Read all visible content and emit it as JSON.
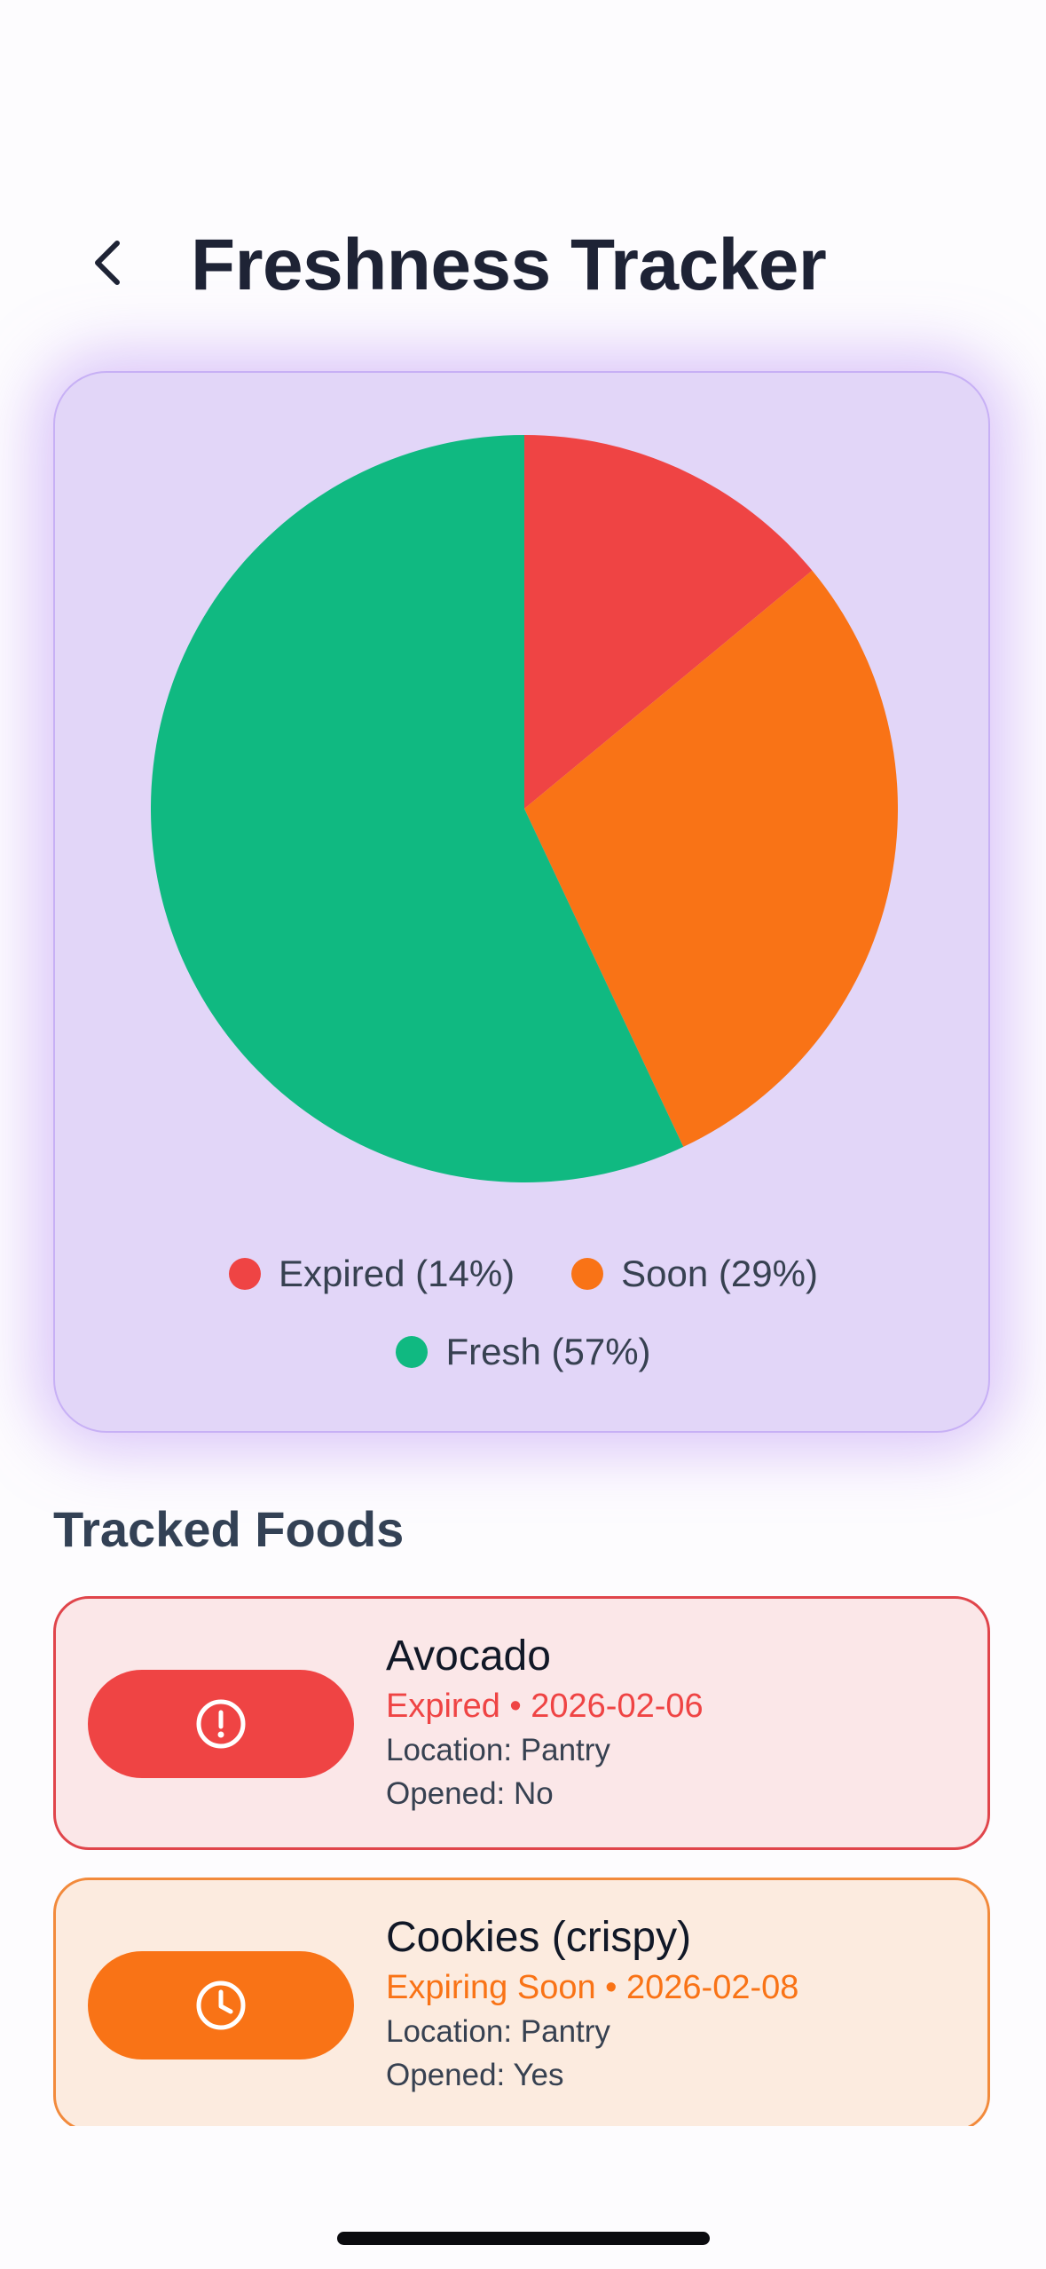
{
  "header": {
    "title": "Freshness Tracker"
  },
  "chart_data": {
    "type": "pie",
    "categories": [
      "Expired",
      "Soon",
      "Fresh"
    ],
    "values": [
      14,
      29,
      57
    ],
    "colors": [
      "#ef4444",
      "#f97316",
      "#10b981"
    ],
    "legend": [
      {
        "label": "Expired (14%)",
        "color": "#ef4444"
      },
      {
        "label": "Soon (29%)",
        "color": "#f97316"
      },
      {
        "label": "Fresh (57%)",
        "color": "#10b981"
      }
    ],
    "legend_placement": "bottom"
  },
  "tracked": {
    "title": "Tracked Foods",
    "items": [
      {
        "name": "Avocado",
        "status": "Expired • 2026-02-06",
        "location": "Location: Pantry",
        "opened": "Opened: No",
        "icon": "alert-circle-icon",
        "status_color": "#ef4444"
      },
      {
        "name": "Cookies (crispy)",
        "status": "Expiring Soon • 2026-02-08",
        "location": "Location: Pantry",
        "opened": "Opened: Yes",
        "icon": "clock-icon",
        "status_color": "#f97316"
      }
    ]
  }
}
